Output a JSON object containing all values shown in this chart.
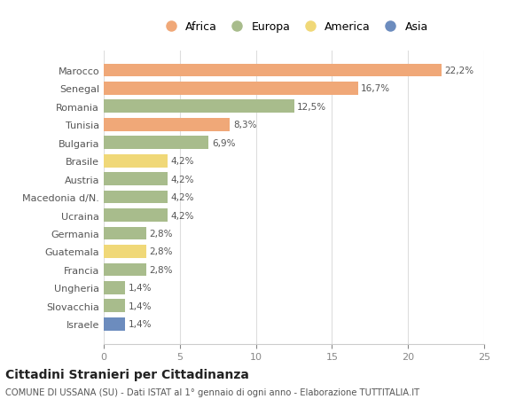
{
  "countries": [
    "Marocco",
    "Senegal",
    "Romania",
    "Tunisia",
    "Bulgaria",
    "Brasile",
    "Austria",
    "Macedonia d/N.",
    "Ucraina",
    "Germania",
    "Guatemala",
    "Francia",
    "Ungheria",
    "Slovacchia",
    "Israele"
  ],
  "values": [
    22.2,
    16.7,
    12.5,
    8.3,
    6.9,
    4.2,
    4.2,
    4.2,
    4.2,
    2.8,
    2.8,
    2.8,
    1.4,
    1.4,
    1.4
  ],
  "labels": [
    "22,2%",
    "16,7%",
    "12,5%",
    "8,3%",
    "6,9%",
    "4,2%",
    "4,2%",
    "4,2%",
    "4,2%",
    "2,8%",
    "2,8%",
    "2,8%",
    "1,4%",
    "1,4%",
    "1,4%"
  ],
  "continents": [
    "Africa",
    "Africa",
    "Europa",
    "Africa",
    "Europa",
    "America",
    "Europa",
    "Europa",
    "Europa",
    "Europa",
    "America",
    "Europa",
    "Europa",
    "Europa",
    "Asia"
  ],
  "colors": {
    "Africa": "#F0A878",
    "Europa": "#A8BC8C",
    "America": "#F0D878",
    "Asia": "#6C8CBE"
  },
  "legend_labels": [
    "Africa",
    "Europa",
    "America",
    "Asia"
  ],
  "legend_colors": [
    "#F0A878",
    "#A8BC8C",
    "#F0D878",
    "#6C8CBE"
  ],
  "title": "Cittadini Stranieri per Cittadinanza",
  "subtitle": "COMUNE DI USSANA (SU) - Dati ISTAT al 1° gennaio di ogni anno - Elaborazione TUTTITALIA.IT",
  "xlim": [
    0,
    25
  ],
  "xticks": [
    0,
    5,
    10,
    15,
    20,
    25
  ],
  "bg_color": "#ffffff",
  "bar_height": 0.72
}
